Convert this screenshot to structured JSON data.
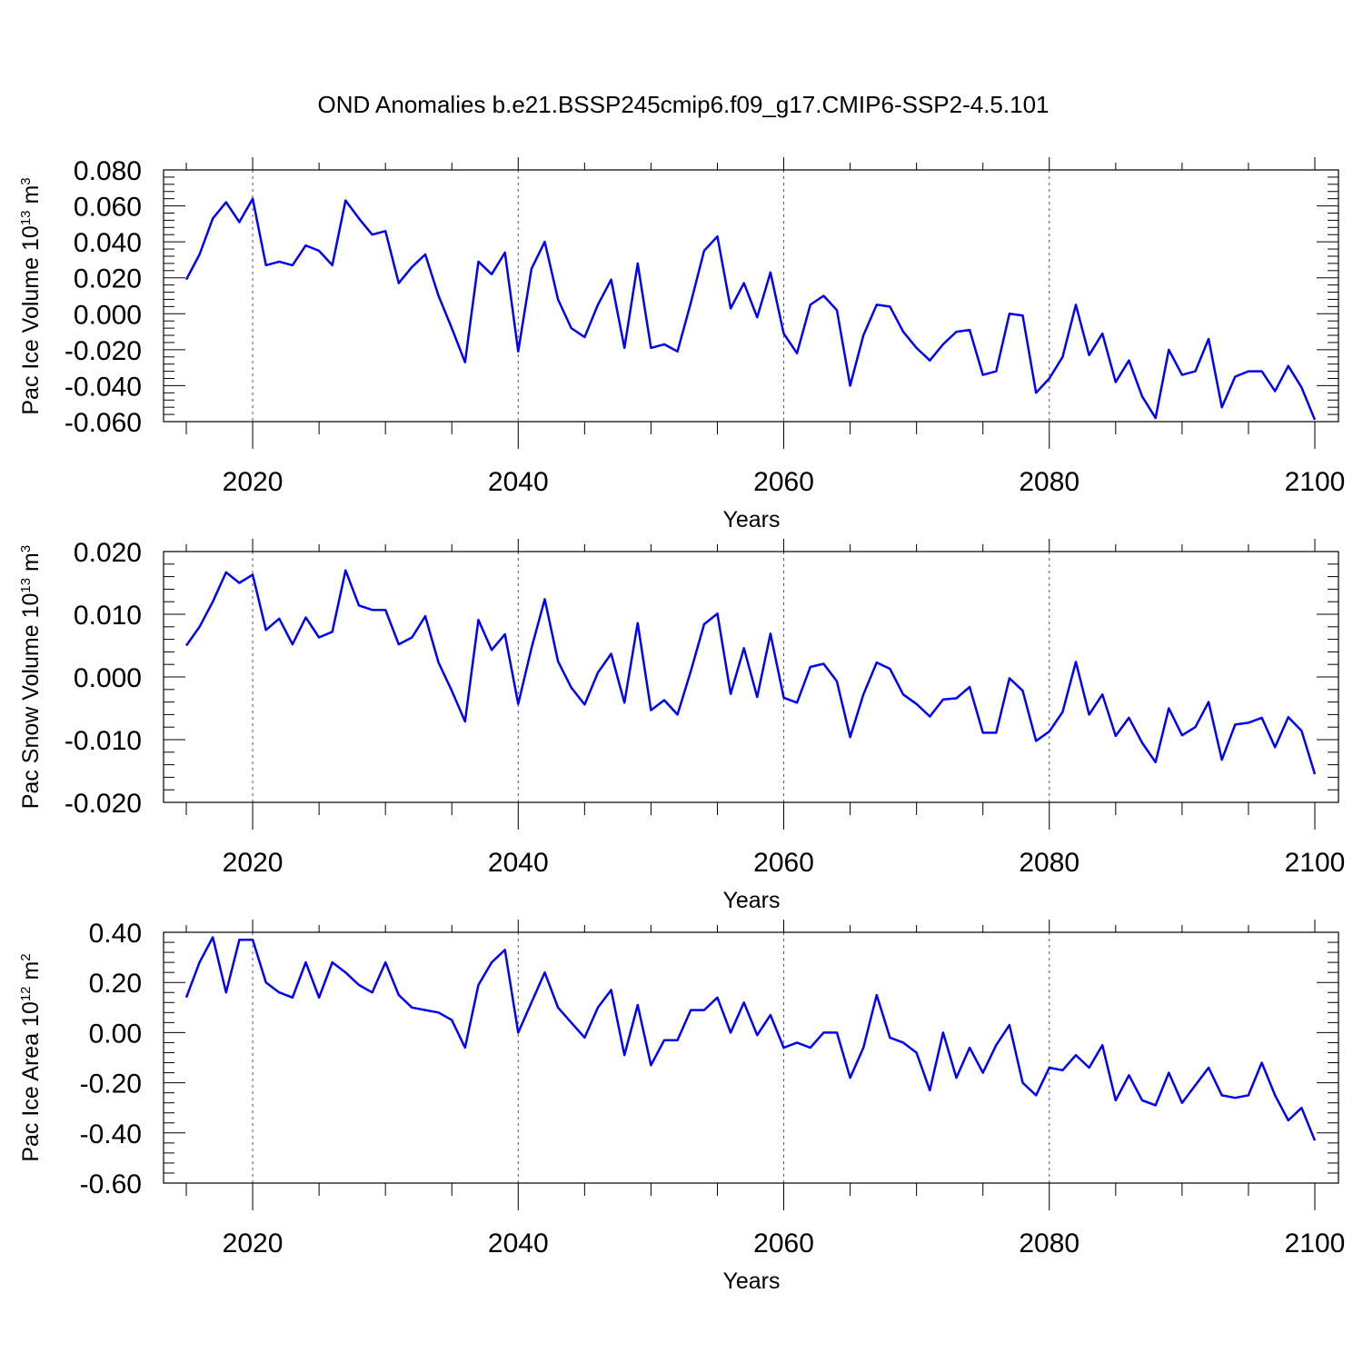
{
  "title": "OND Anomalies b.e21.BSSP245cmip6.f09_g17.CMIP6-SSP2-4.5.101",
  "line_color": "#0000ff",
  "chart_data": [
    {
      "type": "line",
      "ylabel": "Pac Ice Volume",
      "ylabel_unit_base": "10",
      "ylabel_unit_exp": "13",
      "ylabel_unit_m": "m",
      "ylabel_unit_m_exp": "3",
      "xlabel": "Years",
      "xlim": [
        2015,
        2100
      ],
      "ylim": [
        -0.06,
        0.08
      ],
      "yticks": [
        -0.06,
        -0.04,
        -0.02,
        0.0,
        0.02,
        0.04,
        0.06,
        0.08
      ],
      "ytick_labels": [
        "-0.060",
        "-0.040",
        "-0.020",
        "0.000",
        "0.020",
        "0.040",
        "0.060",
        "0.080"
      ],
      "xticks": [
        2020,
        2040,
        2060,
        2080,
        2100
      ],
      "xtick_labels": [
        "2020",
        "2040",
        "2060",
        "2080",
        "2100"
      ],
      "start_year": 2015,
      "values": [
        0.019,
        0.033,
        0.053,
        0.062,
        0.051,
        0.064,
        0.027,
        0.029,
        0.027,
        0.038,
        0.035,
        0.027,
        0.063,
        0.053,
        0.044,
        0.046,
        0.017,
        0.026,
        0.033,
        0.01,
        -0.008,
        -0.027,
        0.029,
        0.022,
        0.034,
        -0.021,
        0.025,
        0.04,
        0.008,
        -0.008,
        -0.013,
        0.005,
        0.019,
        -0.019,
        0.028,
        -0.019,
        -0.017,
        -0.021,
        0.006,
        0.035,
        0.043,
        0.003,
        0.017,
        -0.002,
        0.023,
        -0.011,
        -0.022,
        0.005,
        0.01,
        0.002,
        -0.04,
        -0.012,
        0.005,
        0.004,
        -0.01,
        -0.019,
        -0.026,
        -0.017,
        -0.01,
        -0.009,
        -0.034,
        -0.032,
        0.0,
        -0.001,
        -0.044,
        -0.036,
        -0.024,
        0.005,
        -0.023,
        -0.011,
        -0.038,
        -0.026,
        -0.046,
        -0.058,
        -0.02,
        -0.034,
        -0.032,
        -0.014,
        -0.052,
        -0.035,
        -0.032,
        -0.032,
        -0.043,
        -0.029,
        -0.041,
        -0.059
      ]
    },
    {
      "type": "line",
      "ylabel": "Pac Snow Volume",
      "ylabel_unit_base": "10",
      "ylabel_unit_exp": "13",
      "ylabel_unit_m": "m",
      "ylabel_unit_m_exp": "3",
      "xlabel": "Years",
      "xlim": [
        2015,
        2100
      ],
      "ylim": [
        -0.02,
        0.02
      ],
      "yticks": [
        -0.02,
        -0.01,
        0.0,
        0.01,
        0.02
      ],
      "ytick_labels": [
        "-0.020",
        "-0.010",
        "0.000",
        "0.010",
        "0.020"
      ],
      "xticks": [
        2020,
        2040,
        2060,
        2080,
        2100
      ],
      "xtick_labels": [
        "2020",
        "2040",
        "2060",
        "2080",
        "2100"
      ],
      "start_year": 2015,
      "values": [
        0.005,
        0.008,
        0.012,
        0.0167,
        0.015,
        0.0163,
        0.0075,
        0.0093,
        0.0052,
        0.0095,
        0.0063,
        0.0072,
        0.017,
        0.0114,
        0.0107,
        0.0107,
        0.0052,
        0.0063,
        0.0097,
        0.0023,
        -0.0022,
        -0.0071,
        0.0091,
        0.0043,
        0.0068,
        -0.0043,
        0.0046,
        0.0124,
        0.0025,
        -0.0017,
        -0.0044,
        0.0007,
        0.0037,
        -0.0041,
        0.0086,
        -0.0053,
        -0.0037,
        -0.006,
        0.0009,
        0.0084,
        0.0101,
        -0.0027,
        0.0046,
        -0.0032,
        0.0069,
        -0.0033,
        -0.0041,
        0.0016,
        0.0021,
        -0.0007,
        -0.0096,
        -0.0028,
        0.0023,
        0.0013,
        -0.0028,
        -0.0043,
        -0.0063,
        -0.0036,
        -0.0034,
        -0.0016,
        -0.0089,
        -0.0089,
        -0.0002,
        -0.0022,
        -0.0102,
        -0.0087,
        -0.0056,
        0.0024,
        -0.006,
        -0.0028,
        -0.0094,
        -0.0065,
        -0.0105,
        -0.0136,
        -0.005,
        -0.0093,
        -0.008,
        -0.004,
        -0.0132,
        -0.0076,
        -0.0073,
        -0.0065,
        -0.0112,
        -0.0064,
        -0.0086,
        -0.0155
      ]
    },
    {
      "type": "line",
      "ylabel": "Pac Ice Area",
      "ylabel_unit_base": "10",
      "ylabel_unit_exp": "12",
      "ylabel_unit_m": "m",
      "ylabel_unit_m_exp": "2",
      "xlabel": "Years",
      "xlim": [
        2015,
        2100
      ],
      "ylim": [
        -0.6,
        0.4
      ],
      "yticks": [
        -0.6,
        -0.4,
        -0.2,
        0.0,
        0.2,
        0.4
      ],
      "ytick_labels": [
        "-0.60",
        "-0.40",
        "-0.20",
        "0.00",
        "0.20",
        "0.40"
      ],
      "xticks": [
        2020,
        2040,
        2060,
        2080,
        2100
      ],
      "xtick_labels": [
        "2020",
        "2040",
        "2060",
        "2080",
        "2100"
      ],
      "start_year": 2015,
      "values": [
        0.14,
        0.28,
        0.38,
        0.16,
        0.37,
        0.37,
        0.2,
        0.16,
        0.14,
        0.28,
        0.14,
        0.28,
        0.24,
        0.19,
        0.16,
        0.28,
        0.15,
        0.1,
        0.09,
        0.08,
        0.05,
        -0.06,
        0.19,
        0.28,
        0.33,
        0.0,
        0.12,
        0.24,
        0.1,
        0.04,
        -0.02,
        0.1,
        0.17,
        -0.09,
        0.11,
        -0.13,
        -0.03,
        -0.03,
        0.09,
        0.09,
        0.14,
        0.0,
        0.12,
        -0.01,
        0.07,
        -0.06,
        -0.04,
        -0.06,
        0.0,
        0.0,
        -0.18,
        -0.06,
        0.15,
        -0.02,
        -0.04,
        -0.08,
        -0.23,
        0.0,
        -0.18,
        -0.06,
        -0.16,
        -0.05,
        0.03,
        -0.2,
        -0.25,
        -0.14,
        -0.15,
        -0.09,
        -0.14,
        -0.05,
        -0.27,
        -0.17,
        -0.27,
        -0.29,
        -0.16,
        -0.28,
        -0.21,
        -0.14,
        -0.25,
        -0.26,
        -0.25,
        -0.12,
        -0.25,
        -0.35,
        -0.3,
        -0.43
      ]
    }
  ]
}
